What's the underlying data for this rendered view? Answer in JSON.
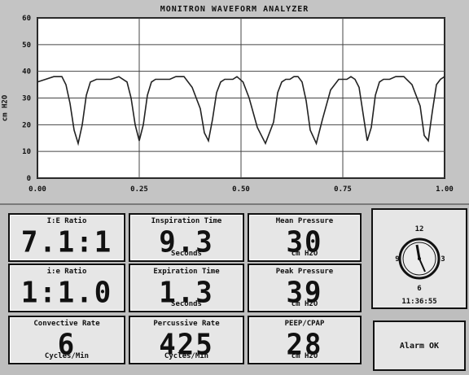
{
  "window": {
    "title": "MONITRON WAVEFORM ANALYZER"
  },
  "chart_data": {
    "type": "line",
    "title": "MONITRON WAVEFORM ANALYZER",
    "ylabel": "cm H2O",
    "xlabel": "",
    "xlim": [
      0,
      1
    ],
    "ylim": [
      0,
      60
    ],
    "xticks": [
      "0.00",
      "0.25",
      "0.50",
      "0.75",
      "1.00"
    ],
    "yticks": [
      "0",
      "10",
      "20",
      "30",
      "40",
      "50",
      "60"
    ],
    "grid": true,
    "series": [
      {
        "x": [
          0.0,
          0.02,
          0.04,
          0.06,
          0.07,
          0.08,
          0.09,
          0.1,
          0.11,
          0.12,
          0.13,
          0.145,
          0.16,
          0.18,
          0.2,
          0.22,
          0.23,
          0.24,
          0.25,
          0.26,
          0.27,
          0.28,
          0.29,
          0.3,
          0.31,
          0.325,
          0.34,
          0.36,
          0.38,
          0.4,
          0.41,
          0.42,
          0.43,
          0.44,
          0.45,
          0.46,
          0.47,
          0.48,
          0.49,
          0.505,
          0.52,
          0.54,
          0.56,
          0.58,
          0.59,
          0.6,
          0.61,
          0.62,
          0.63,
          0.64,
          0.65,
          0.66,
          0.67,
          0.685,
          0.7,
          0.72,
          0.74,
          0.76,
          0.77,
          0.78,
          0.79,
          0.8,
          0.81,
          0.82,
          0.83,
          0.84,
          0.85,
          0.865,
          0.88,
          0.9,
          0.92,
          0.94,
          0.95,
          0.96,
          0.97,
          0.98,
          0.99,
          1.0
        ],
        "values": [
          36,
          37,
          38,
          38,
          35,
          28,
          18,
          13,
          20,
          31,
          36,
          37,
          37,
          37,
          38,
          36,
          30,
          20,
          14,
          20,
          31,
          36,
          37,
          37,
          37,
          37,
          38,
          38,
          34,
          26,
          17,
          14,
          22,
          32,
          36,
          37,
          37,
          37,
          38,
          36,
          30,
          19,
          13,
          21,
          32,
          36,
          37,
          37,
          38,
          38,
          36,
          29,
          18,
          13,
          22,
          33,
          37,
          37,
          38,
          37,
          34,
          24,
          14,
          19,
          31,
          36,
          37,
          37,
          38,
          38,
          35,
          27,
          16,
          14,
          25,
          35,
          37,
          38
        ]
      }
    ]
  },
  "panels": [
    {
      "label": "I:E Ratio",
      "value": "7.1:1",
      "unit": ""
    },
    {
      "label": "Inspiration Time",
      "value": "9.3",
      "unit": "Seconds"
    },
    {
      "label": "Mean Pressure",
      "value": "30",
      "unit": "cm H2O"
    },
    {
      "label": "i:e Ratio",
      "value": "1:1.0",
      "unit": ""
    },
    {
      "label": "Expiration Time",
      "value": "1.3",
      "unit": "Seconds"
    },
    {
      "label": "Peak Pressure",
      "value": "39",
      "unit": "cm H2O"
    },
    {
      "label": "Convective Rate",
      "value": "6",
      "unit": "Cycles/Min"
    },
    {
      "label": "Percussive Rate",
      "value": "425",
      "unit": "Cycles/Min"
    },
    {
      "label": "PEEP/CPAP",
      "value": "28",
      "unit": "cm H2O"
    }
  ],
  "clock": {
    "n12": "12",
    "n3": "3",
    "n6": "6",
    "n9": "9",
    "time": "11:36:55",
    "icon": "analog-clock-icon"
  },
  "alarm": {
    "text": "Alarm OK"
  }
}
